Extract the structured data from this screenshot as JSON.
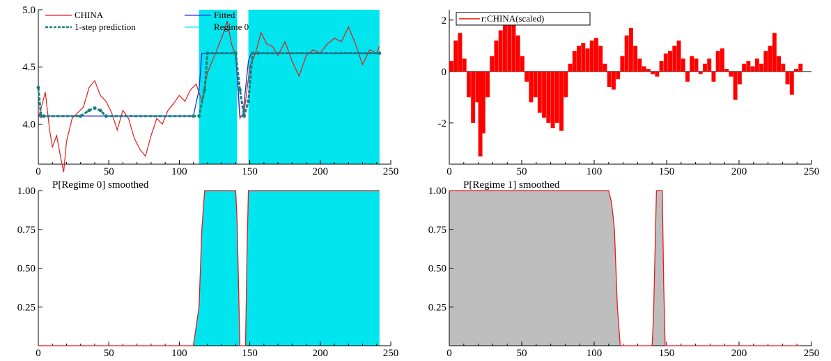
{
  "chart_data": [
    {
      "type": "line",
      "panel": "top-left",
      "title": "",
      "xlim": [
        0,
        250
      ],
      "ylim": [
        3.65,
        5.0
      ],
      "xticks": [
        0,
        50,
        100,
        150,
        200,
        250
      ],
      "yticks": [
        4.0,
        4.5,
        5.0
      ],
      "ytick_labels": [
        "4.0",
        "4.5",
        "5.0"
      ],
      "shaded_regions": [
        [
          114,
          141
        ],
        [
          149,
          242
        ]
      ],
      "shade_color": "#00e5ee",
      "legend": [
        "CHINA",
        "Fitted",
        "1-step prediction",
        "Regime 0"
      ],
      "legend_placement": "top",
      "series": [
        {
          "name": "CHINA",
          "color": "#e41a1c",
          "x": [
            0,
            5,
            8,
            10,
            13,
            16,
            18,
            20,
            24,
            28,
            32,
            36,
            40,
            44,
            48,
            52,
            56,
            60,
            64,
            68,
            72,
            76,
            80,
            84,
            88,
            92,
            96,
            100,
            104,
            108,
            112,
            116,
            120,
            125,
            130,
            134,
            137,
            140,
            143,
            146,
            150,
            154,
            158,
            162,
            166,
            170,
            175,
            180,
            185,
            190,
            195,
            200,
            205,
            210,
            215,
            220,
            225,
            230,
            235,
            240,
            242
          ],
          "values": [
            4.05,
            4.28,
            3.95,
            3.8,
            3.9,
            3.7,
            3.58,
            3.85,
            4.05,
            4.1,
            4.15,
            4.32,
            4.38,
            4.25,
            4.2,
            4.1,
            3.95,
            4.12,
            4.05,
            3.88,
            3.78,
            3.72,
            3.9,
            4.05,
            4.0,
            4.12,
            4.18,
            4.25,
            4.2,
            4.3,
            4.35,
            4.2,
            4.45,
            4.6,
            4.75,
            4.9,
            4.7,
            4.6,
            4.05,
            4.1,
            4.5,
            4.62,
            4.8,
            4.7,
            4.68,
            4.6,
            4.72,
            4.55,
            4.42,
            4.6,
            4.65,
            4.62,
            4.7,
            4.75,
            4.72,
            4.85,
            4.7,
            4.52,
            4.65,
            4.62,
            4.68
          ]
        },
        {
          "name": "Fitted",
          "color": "#1f2ee6",
          "x": [
            0,
            110,
            114,
            116,
            120,
            140,
            143,
            145,
            149,
            151,
            155,
            242
          ],
          "values": [
            4.07,
            4.07,
            4.3,
            4.62,
            4.62,
            4.62,
            4.07,
            4.07,
            4.55,
            4.62,
            4.62,
            4.62
          ]
        },
        {
          "name": "1-step prediction",
          "color": "#1a7f7a",
          "x": [
            0,
            2,
            4,
            30,
            36,
            40,
            44,
            48,
            110,
            114,
            118,
            120,
            140,
            143,
            146,
            149,
            152,
            156,
            242
          ],
          "values": [
            4.32,
            4.07,
            4.07,
            4.07,
            4.12,
            4.14,
            4.12,
            4.07,
            4.07,
            4.07,
            4.3,
            4.62,
            4.62,
            4.3,
            4.07,
            4.2,
            4.62,
            4.62,
            4.62
          ]
        }
      ]
    },
    {
      "type": "bar",
      "panel": "top-right",
      "title": "",
      "xlim": [
        0,
        250
      ],
      "ylim": [
        -3.6,
        2.4
      ],
      "xticks": [
        0,
        50,
        100,
        150,
        200,
        250
      ],
      "yticks": [
        -2,
        0,
        2
      ],
      "ytick_labels": [
        "-2",
        "0",
        "2"
      ],
      "legend": [
        "r:CHINA(scaled)"
      ],
      "legend_placement": "top-left",
      "series": [
        {
          "name": "r:CHINA(scaled)",
          "color": "#ff0000",
          "x": [
            0,
            3,
            6,
            9,
            12,
            15,
            18,
            20,
            22,
            25,
            28,
            31,
            34,
            37,
            40,
            43,
            46,
            49,
            52,
            55,
            58,
            61,
            64,
            67,
            70,
            73,
            76,
            79,
            82,
            85,
            88,
            91,
            94,
            97,
            100,
            103,
            106,
            109,
            112,
            115,
            118,
            121,
            124,
            127,
            130,
            133,
            136,
            139,
            142,
            145,
            148,
            151,
            154,
            157,
            160,
            163,
            166,
            169,
            172,
            175,
            178,
            181,
            184,
            187,
            190,
            193,
            196,
            199,
            202,
            205,
            208,
            211,
            214,
            217,
            220,
            223,
            226,
            229,
            232,
            235,
            238,
            241
          ],
          "values": [
            0.4,
            1.2,
            1.5,
            0.5,
            -1.0,
            -2.0,
            -1.2,
            -3.3,
            -2.4,
            -1.0,
            0.6,
            1.2,
            1.6,
            1.9,
            2.0,
            1.8,
            1.4,
            0.6,
            -0.4,
            -1.2,
            -1.0,
            -1.6,
            -1.8,
            -2.0,
            -2.2,
            -2.0,
            -2.3,
            -1.0,
            0.3,
            0.8,
            1.0,
            1.1,
            0.9,
            1.2,
            1.3,
            1.0,
            0.3,
            -0.6,
            -0.7,
            -0.3,
            0.6,
            1.4,
            1.7,
            1.0,
            0.5,
            0.2,
            0.1,
            -0.1,
            -0.2,
            0.4,
            0.7,
            0.8,
            1.0,
            1.2,
            0.5,
            -0.4,
            0.6,
            0.5,
            -0.1,
            0.3,
            0.5,
            -0.4,
            0.8,
            0.9,
            0.1,
            -0.2,
            -1.1,
            -0.5,
            0.3,
            0.4,
            0.2,
            0.5,
            0.3,
            0.8,
            1.0,
            1.5,
            0.6,
            0.3,
            -0.5,
            -0.9,
            0.1,
            0.3
          ]
        }
      ]
    },
    {
      "type": "area",
      "panel": "bottom-left",
      "title": "P[Regime 0] smoothed",
      "xlim": [
        0,
        250
      ],
      "ylim": [
        0,
        1.0
      ],
      "xticks": [
        0,
        50,
        100,
        150,
        200,
        250
      ],
      "yticks": [
        0.25,
        0.5,
        0.75,
        1.0
      ],
      "ytick_labels": [
        "0.25",
        "0.50",
        "0.75",
        "1.00"
      ],
      "fill_color": "#00e5ee",
      "line_color": "#e41a1c",
      "series": [
        {
          "name": "P[Regime 0] smoothed",
          "x": [
            0,
            110,
            114,
            116,
            118,
            140,
            141,
            143,
            147,
            148,
            149,
            150,
            242
          ],
          "values": [
            0,
            0,
            0.25,
            0.75,
            1.0,
            1.0,
            0.8,
            0,
            0,
            0.6,
            1.0,
            1.0,
            1.0
          ]
        }
      ]
    },
    {
      "type": "area",
      "panel": "bottom-right",
      "title": "P[Regime 1] smoothed",
      "xlim": [
        0,
        250
      ],
      "ylim": [
        0,
        1.0
      ],
      "xticks": [
        0,
        50,
        100,
        150,
        200,
        250
      ],
      "yticks": [
        0.25,
        0.5,
        0.75,
        1.0
      ],
      "ytick_labels": [
        "0.25",
        "0.50",
        "0.75",
        "1.00"
      ],
      "fill_color": "#bebebe",
      "line_color": "#e41a1c",
      "series": [
        {
          "name": "P[Regime 1] smoothed",
          "x": [
            0,
            110,
            112,
            114,
            116,
            118,
            140,
            141,
            143,
            147,
            148,
            149,
            150,
            242
          ],
          "values": [
            1.0,
            1.0,
            0.92,
            0.75,
            0.25,
            0,
            0,
            0.2,
            1.0,
            1.0,
            0.4,
            0,
            0,
            0
          ]
        }
      ]
    }
  ]
}
